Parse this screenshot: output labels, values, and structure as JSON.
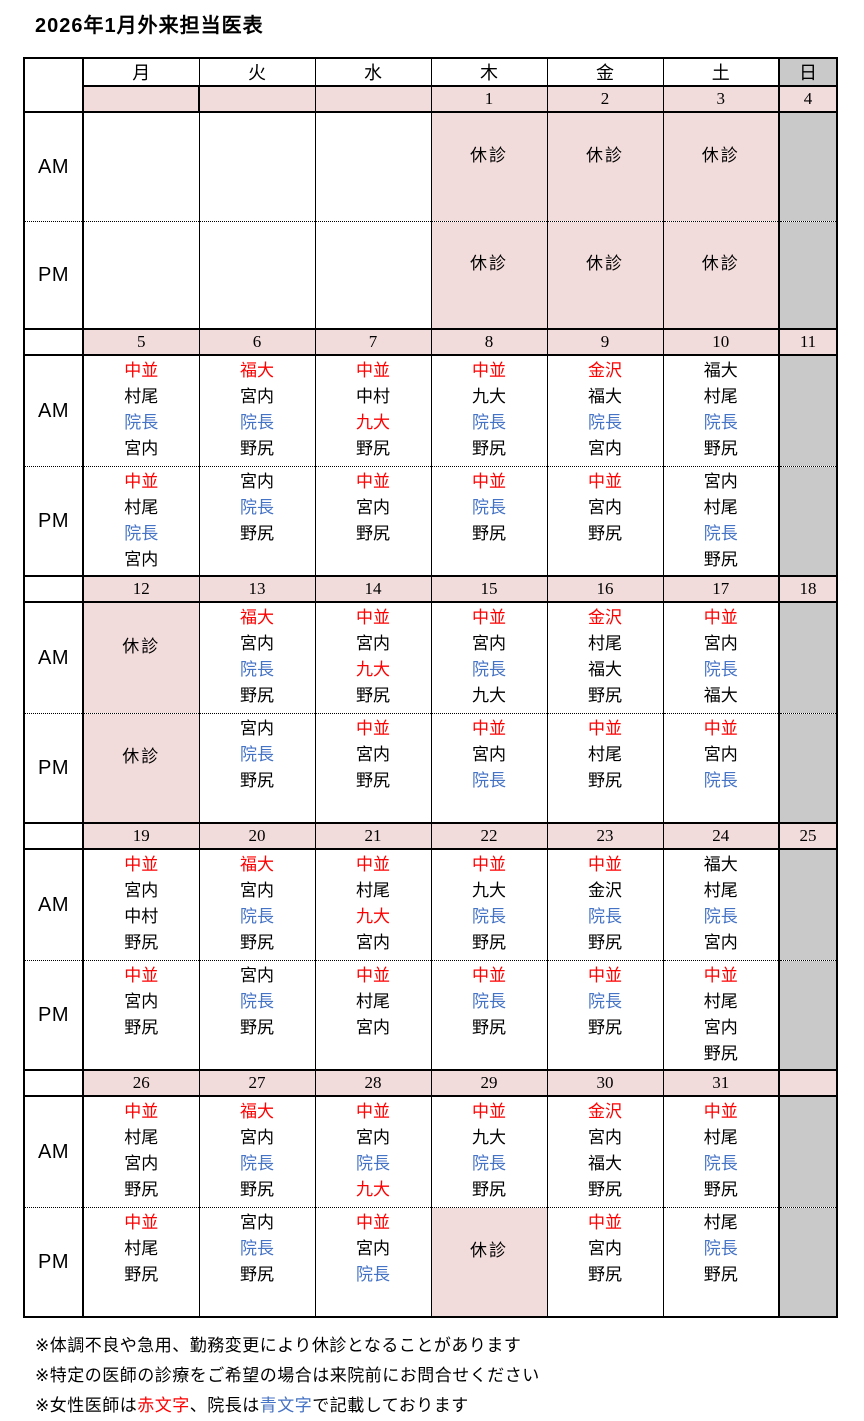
{
  "title": "2026年1月外来担当医表",
  "colors": {
    "red": "#ff0000",
    "blue": "#4472c4",
    "pink": "#f2dcdb",
    "gray": "#c9c9c9"
  },
  "weekday_headers": [
    "月",
    "火",
    "水",
    "木",
    "金",
    "土",
    "日"
  ],
  "time_labels": {
    "am": "AM",
    "pm": "PM"
  },
  "closed_label": "休診",
  "weeks": [
    {
      "dates": [
        "",
        "",
        "",
        "1",
        "2",
        "3",
        "4"
      ],
      "am": [
        {
          "bg": "white"
        },
        {
          "bg": "white"
        },
        {
          "bg": "white"
        },
        {
          "closed": true
        },
        {
          "closed": true
        },
        {
          "closed": true
        },
        {
          "bg": "gray"
        }
      ],
      "pm": [
        {
          "bg": "white"
        },
        {
          "bg": "white"
        },
        {
          "bg": "white"
        },
        {
          "closed": true
        },
        {
          "closed": true
        },
        {
          "closed": true
        },
        {
          "bg": "gray"
        }
      ]
    },
    {
      "dates": [
        "5",
        "6",
        "7",
        "8",
        "9",
        "10",
        "11"
      ],
      "am": [
        {
          "names": [
            {
              "n": "中並",
              "c": "r"
            },
            {
              "n": "村尾"
            },
            {
              "n": "院長",
              "c": "b"
            },
            {
              "n": "宮内"
            }
          ]
        },
        {
          "names": [
            {
              "n": "福大",
              "c": "r"
            },
            {
              "n": "宮内"
            },
            {
              "n": "院長",
              "c": "b"
            },
            {
              "n": "野尻"
            }
          ]
        },
        {
          "names": [
            {
              "n": "中並",
              "c": "r"
            },
            {
              "n": "中村"
            },
            {
              "n": "九大",
              "c": "r"
            },
            {
              "n": "野尻"
            }
          ]
        },
        {
          "names": [
            {
              "n": "中並",
              "c": "r"
            },
            {
              "n": "九大"
            },
            {
              "n": "院長",
              "c": "b"
            },
            {
              "n": "野尻"
            }
          ]
        },
        {
          "names": [
            {
              "n": "金沢",
              "c": "r"
            },
            {
              "n": "福大"
            },
            {
              "n": "院長",
              "c": "b"
            },
            {
              "n": "宮内"
            }
          ]
        },
        {
          "names": [
            {
              "n": "福大"
            },
            {
              "n": "村尾"
            },
            {
              "n": "院長",
              "c": "b"
            },
            {
              "n": "野尻"
            }
          ]
        },
        {
          "bg": "gray"
        }
      ],
      "pm": [
        {
          "names": [
            {
              "n": "中並",
              "c": "r"
            },
            {
              "n": "村尾"
            },
            {
              "n": "院長",
              "c": "b"
            },
            {
              "n": "宮内"
            }
          ]
        },
        {
          "names": [
            {
              "n": "宮内"
            },
            {
              "n": "院長",
              "c": "b"
            },
            {
              "n": "野尻"
            }
          ]
        },
        {
          "names": [
            {
              "n": "中並",
              "c": "r"
            },
            {
              "n": "宮内"
            },
            {
              "n": "野尻"
            }
          ]
        },
        {
          "names": [
            {
              "n": "中並",
              "c": "r"
            },
            {
              "n": "院長",
              "c": "b"
            },
            {
              "n": "野尻"
            }
          ]
        },
        {
          "names": [
            {
              "n": "中並",
              "c": "r"
            },
            {
              "n": "宮内"
            },
            {
              "n": "野尻"
            }
          ]
        },
        {
          "names": [
            {
              "n": "宮内"
            },
            {
              "n": "村尾"
            },
            {
              "n": "院長",
              "c": "b"
            },
            {
              "n": "野尻"
            }
          ]
        },
        {
          "bg": "gray"
        }
      ]
    },
    {
      "dates": [
        "12",
        "13",
        "14",
        "15",
        "16",
        "17",
        "18"
      ],
      "am": [
        {
          "closed": true
        },
        {
          "names": [
            {
              "n": "福大",
              "c": "r"
            },
            {
              "n": "宮内"
            },
            {
              "n": "院長",
              "c": "b"
            },
            {
              "n": "野尻"
            }
          ]
        },
        {
          "names": [
            {
              "n": "中並",
              "c": "r"
            },
            {
              "n": "宮内"
            },
            {
              "n": "九大",
              "c": "r"
            },
            {
              "n": "野尻"
            }
          ]
        },
        {
          "names": [
            {
              "n": "中並",
              "c": "r"
            },
            {
              "n": "宮内"
            },
            {
              "n": "院長",
              "c": "b"
            },
            {
              "n": "九大"
            }
          ]
        },
        {
          "names": [
            {
              "n": "金沢",
              "c": "r"
            },
            {
              "n": "村尾"
            },
            {
              "n": "福大"
            },
            {
              "n": "野尻"
            }
          ]
        },
        {
          "names": [
            {
              "n": "中並",
              "c": "r"
            },
            {
              "n": "宮内"
            },
            {
              "n": "院長",
              "c": "b"
            },
            {
              "n": "福大"
            }
          ]
        },
        {
          "bg": "gray"
        }
      ],
      "pm": [
        {
          "closed": true
        },
        {
          "names": [
            {
              "n": "宮内"
            },
            {
              "n": "院長",
              "c": "b"
            },
            {
              "n": "野尻"
            }
          ]
        },
        {
          "names": [
            {
              "n": "中並",
              "c": "r"
            },
            {
              "n": "宮内"
            },
            {
              "n": "野尻"
            }
          ]
        },
        {
          "names": [
            {
              "n": "中並",
              "c": "r"
            },
            {
              "n": "宮内"
            },
            {
              "n": "院長",
              "c": "b"
            }
          ]
        },
        {
          "names": [
            {
              "n": "中並",
              "c": "r"
            },
            {
              "n": "村尾"
            },
            {
              "n": "野尻"
            }
          ]
        },
        {
          "names": [
            {
              "n": "中並",
              "c": "r"
            },
            {
              "n": "宮内"
            },
            {
              "n": "院長",
              "c": "b"
            }
          ]
        },
        {
          "bg": "gray"
        }
      ]
    },
    {
      "dates": [
        "19",
        "20",
        "21",
        "22",
        "23",
        "24",
        "25"
      ],
      "am": [
        {
          "names": [
            {
              "n": "中並",
              "c": "r"
            },
            {
              "n": "宮内"
            },
            {
              "n": "中村"
            },
            {
              "n": "野尻"
            }
          ]
        },
        {
          "names": [
            {
              "n": "福大",
              "c": "r"
            },
            {
              "n": "宮内"
            },
            {
              "n": "院長",
              "c": "b"
            },
            {
              "n": "野尻"
            }
          ]
        },
        {
          "names": [
            {
              "n": "中並",
              "c": "r"
            },
            {
              "n": "村尾"
            },
            {
              "n": "九大",
              "c": "r"
            },
            {
              "n": "宮内"
            }
          ]
        },
        {
          "names": [
            {
              "n": "中並",
              "c": "r"
            },
            {
              "n": "九大"
            },
            {
              "n": "院長",
              "c": "b"
            },
            {
              "n": "野尻"
            }
          ]
        },
        {
          "names": [
            {
              "n": "中並",
              "c": "r"
            },
            {
              "n": "金沢"
            },
            {
              "n": "院長",
              "c": "b"
            },
            {
              "n": "野尻"
            }
          ]
        },
        {
          "names": [
            {
              "n": "福大"
            },
            {
              "n": "村尾"
            },
            {
              "n": "院長",
              "c": "b"
            },
            {
              "n": "宮内"
            }
          ]
        },
        {
          "bg": "gray"
        }
      ],
      "pm": [
        {
          "names": [
            {
              "n": "中並",
              "c": "r"
            },
            {
              "n": "宮内"
            },
            {
              "n": "野尻"
            }
          ]
        },
        {
          "names": [
            {
              "n": "宮内"
            },
            {
              "n": "院長",
              "c": "b"
            },
            {
              "n": "野尻"
            }
          ]
        },
        {
          "names": [
            {
              "n": "中並",
              "c": "r"
            },
            {
              "n": "村尾"
            },
            {
              "n": "宮内"
            }
          ]
        },
        {
          "names": [
            {
              "n": "中並",
              "c": "r"
            },
            {
              "n": "院長",
              "c": "b"
            },
            {
              "n": "野尻"
            }
          ]
        },
        {
          "names": [
            {
              "n": "中並",
              "c": "r"
            },
            {
              "n": "院長",
              "c": "b"
            },
            {
              "n": "野尻"
            }
          ]
        },
        {
          "names": [
            {
              "n": "中並",
              "c": "r"
            },
            {
              "n": "村尾"
            },
            {
              "n": "宮内"
            },
            {
              "n": "野尻"
            }
          ]
        },
        {
          "bg": "gray"
        }
      ]
    },
    {
      "dates": [
        "26",
        "27",
        "28",
        "29",
        "30",
        "31",
        ""
      ],
      "am": [
        {
          "names": [
            {
              "n": "中並",
              "c": "r"
            },
            {
              "n": "村尾"
            },
            {
              "n": "宮内"
            },
            {
              "n": "野尻"
            }
          ]
        },
        {
          "names": [
            {
              "n": "福大",
              "c": "r"
            },
            {
              "n": "宮内"
            },
            {
              "n": "院長",
              "c": "b"
            },
            {
              "n": "野尻"
            }
          ]
        },
        {
          "names": [
            {
              "n": "中並",
              "c": "r"
            },
            {
              "n": "宮内"
            },
            {
              "n": "院長",
              "c": "b"
            },
            {
              "n": "九大",
              "c": "r"
            }
          ]
        },
        {
          "names": [
            {
              "n": "中並",
              "c": "r"
            },
            {
              "n": "九大"
            },
            {
              "n": "院長",
              "c": "b"
            },
            {
              "n": "野尻"
            }
          ]
        },
        {
          "names": [
            {
              "n": "金沢",
              "c": "r"
            },
            {
              "n": "宮内"
            },
            {
              "n": "福大"
            },
            {
              "n": "野尻"
            }
          ]
        },
        {
          "names": [
            {
              "n": "中並",
              "c": "r"
            },
            {
              "n": "村尾"
            },
            {
              "n": "院長",
              "c": "b"
            },
            {
              "n": "野尻"
            }
          ]
        },
        {
          "bg": "gray"
        }
      ],
      "pm": [
        {
          "names": [
            {
              "n": "中並",
              "c": "r"
            },
            {
              "n": "村尾"
            },
            {
              "n": "野尻"
            }
          ]
        },
        {
          "names": [
            {
              "n": "宮内"
            },
            {
              "n": "院長",
              "c": "b"
            },
            {
              "n": "野尻"
            }
          ]
        },
        {
          "names": [
            {
              "n": "中並",
              "c": "r"
            },
            {
              "n": "宮内"
            },
            {
              "n": "院長",
              "c": "b"
            }
          ]
        },
        {
          "closed": true
        },
        {
          "names": [
            {
              "n": "中並",
              "c": "r"
            },
            {
              "n": "宮内"
            },
            {
              "n": "野尻"
            }
          ]
        },
        {
          "names": [
            {
              "n": "村尾"
            },
            {
              "n": "院長",
              "c": "b"
            },
            {
              "n": "野尻"
            }
          ]
        },
        {
          "bg": "gray"
        }
      ]
    }
  ],
  "notes": [
    [
      {
        "t": "※体調不良や急用、勤務変更により休診となることがあります"
      }
    ],
    [
      {
        "t": "※特定の医師の診療をご希望の場合は来院前にお問合せください"
      }
    ],
    [
      {
        "t": "※女性医師は"
      },
      {
        "t": "赤文字",
        "c": "r"
      },
      {
        "t": "、院長は"
      },
      {
        "t": "青文字",
        "c": "b"
      },
      {
        "t": "で記載しております"
      }
    ]
  ]
}
